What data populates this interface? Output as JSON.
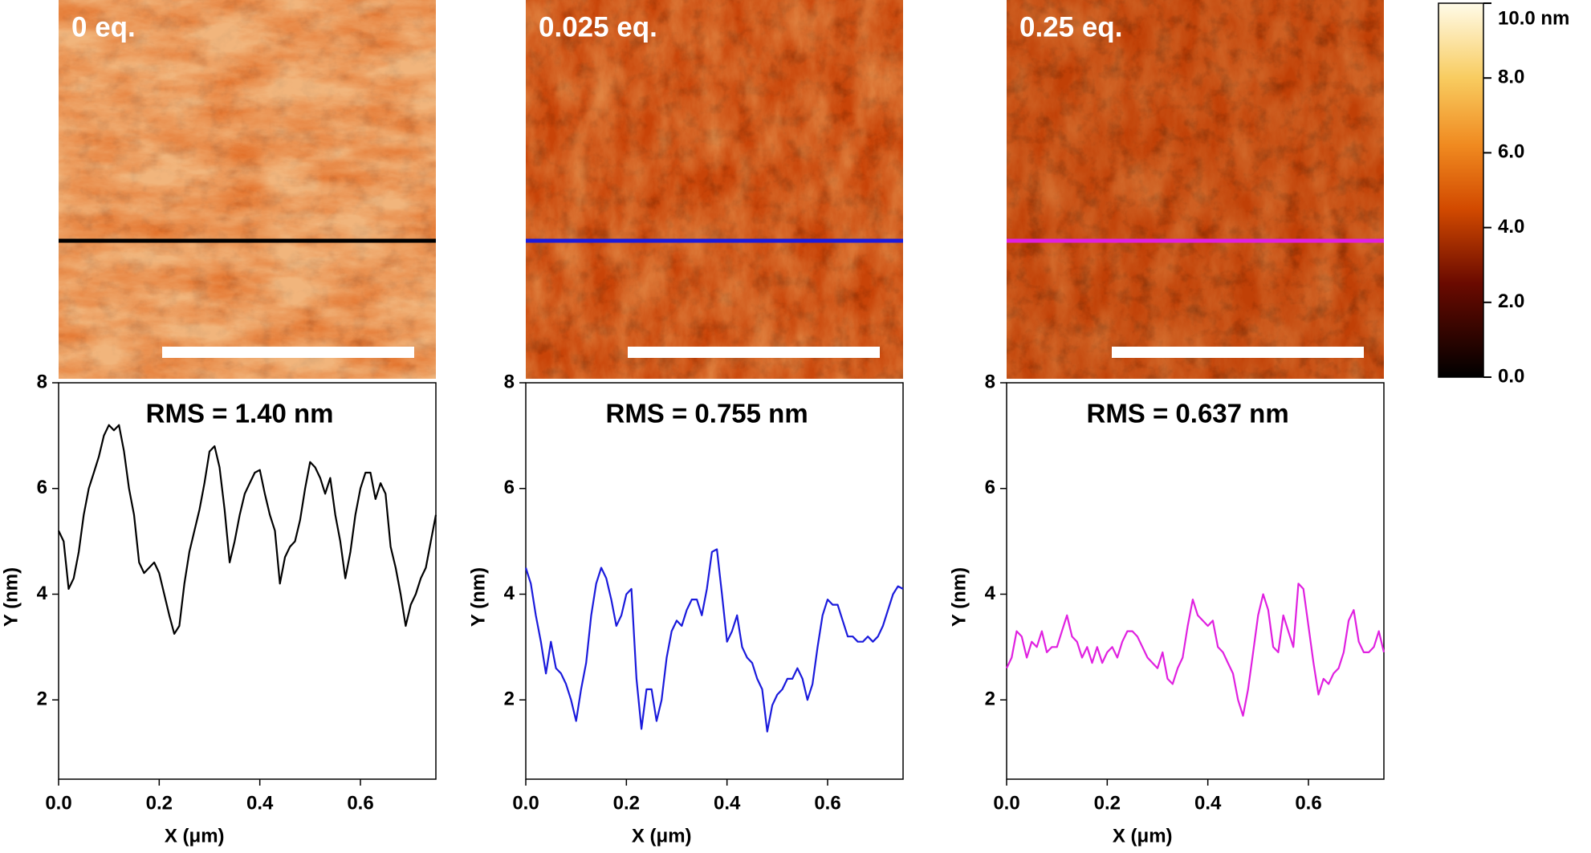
{
  "colorbar": {
    "lim": [
      0,
      10
    ],
    "ticks": [
      {
        "value": 10,
        "label": "10.0 nm"
      },
      {
        "value": 8,
        "label": "8.0"
      },
      {
        "value": 6,
        "label": "6.0"
      },
      {
        "value": 4,
        "label": "4.0"
      },
      {
        "value": 2,
        "label": "2.0"
      },
      {
        "value": 0,
        "label": "0.0"
      }
    ]
  },
  "chart_data": [
    {
      "type": "line",
      "image_label": "0 eq.",
      "annotation": "RMS = 1.40 nm",
      "xlabel": "X (μm)",
      "ylabel": "Y (nm)",
      "xlim": [
        0,
        0.75
      ],
      "ylim": [
        0.5,
        8
      ],
      "xticks": [
        {
          "value": 0,
          "label": "0.0"
        },
        {
          "value": 0.2,
          "label": "0.2"
        },
        {
          "value": 0.4,
          "label": "0.4"
        },
        {
          "value": 0.6,
          "label": "0.6"
        }
      ],
      "yticks": [
        2,
        4,
        6,
        8
      ],
      "x": [
        0,
        0.01,
        0.02,
        0.03,
        0.04,
        0.05,
        0.06,
        0.07,
        0.08,
        0.09,
        0.1,
        0.11,
        0.12,
        0.13,
        0.14,
        0.15,
        0.16,
        0.17,
        0.18,
        0.19,
        0.2,
        0.21,
        0.22,
        0.23,
        0.24,
        0.25,
        0.26,
        0.27,
        0.28,
        0.29,
        0.3,
        0.31,
        0.32,
        0.33,
        0.34,
        0.35,
        0.36,
        0.37,
        0.38,
        0.39,
        0.4,
        0.41,
        0.42,
        0.43,
        0.44,
        0.45,
        0.46,
        0.47,
        0.48,
        0.49,
        0.5,
        0.51,
        0.52,
        0.53,
        0.54,
        0.55,
        0.56,
        0.57,
        0.58,
        0.59,
        0.6,
        0.61,
        0.62,
        0.63,
        0.64,
        0.65,
        0.66,
        0.67,
        0.68,
        0.69,
        0.7,
        0.71,
        0.72,
        0.73,
        0.74,
        0.75
      ],
      "series": [
        {
          "color": "#000000",
          "values": [
            5.2,
            5.0,
            4.1,
            4.3,
            4.8,
            5.5,
            6.0,
            6.3,
            6.6,
            7.0,
            7.2,
            7.1,
            7.2,
            6.7,
            6.0,
            5.5,
            4.6,
            4.4,
            4.5,
            4.6,
            4.4,
            4.0,
            3.6,
            3.25,
            3.4,
            4.2,
            4.8,
            5.2,
            5.6,
            6.1,
            6.7,
            6.8,
            6.4,
            5.6,
            4.6,
            5.0,
            5.5,
            5.9,
            6.1,
            6.3,
            6.35,
            5.9,
            5.5,
            5.2,
            4.2,
            4.7,
            4.9,
            5.0,
            5.4,
            6.0,
            6.5,
            6.4,
            6.2,
            5.9,
            6.2,
            5.5,
            5.0,
            4.3,
            4.8,
            5.5,
            6.0,
            6.3,
            6.3,
            5.8,
            6.1,
            5.9,
            4.9,
            4.5,
            4.0,
            3.4,
            3.8,
            4.0,
            4.3,
            4.5,
            5.0,
            5.5
          ]
        }
      ]
    },
    {
      "type": "line",
      "image_label": "0.025 eq.",
      "annotation": "RMS = 0.755 nm",
      "xlabel": "X (μm)",
      "ylabel": "Y (nm)",
      "xlim": [
        0,
        0.75
      ],
      "ylim": [
        0.5,
        8
      ],
      "xticks": [
        {
          "value": 0,
          "label": "0.0"
        },
        {
          "value": 0.2,
          "label": "0.2"
        },
        {
          "value": 0.4,
          "label": "0.4"
        },
        {
          "value": 0.6,
          "label": "0.6"
        }
      ],
      "yticks": [
        2,
        4,
        6,
        8
      ],
      "x": [
        0,
        0.01,
        0.02,
        0.03,
        0.04,
        0.05,
        0.06,
        0.07,
        0.08,
        0.09,
        0.1,
        0.11,
        0.12,
        0.13,
        0.14,
        0.15,
        0.16,
        0.17,
        0.18,
        0.19,
        0.2,
        0.21,
        0.22,
        0.23,
        0.24,
        0.25,
        0.26,
        0.27,
        0.28,
        0.29,
        0.3,
        0.31,
        0.32,
        0.33,
        0.34,
        0.35,
        0.36,
        0.37,
        0.38,
        0.39,
        0.4,
        0.41,
        0.42,
        0.43,
        0.44,
        0.45,
        0.46,
        0.47,
        0.48,
        0.49,
        0.5,
        0.51,
        0.52,
        0.53,
        0.54,
        0.55,
        0.56,
        0.57,
        0.58,
        0.59,
        0.6,
        0.61,
        0.62,
        0.63,
        0.64,
        0.65,
        0.66,
        0.67,
        0.68,
        0.69,
        0.7,
        0.71,
        0.72,
        0.73,
        0.74,
        0.75
      ],
      "series": [
        {
          "color": "#1a1adc",
          "values": [
            4.5,
            4.2,
            3.6,
            3.1,
            2.5,
            3.1,
            2.6,
            2.5,
            2.3,
            2.0,
            1.6,
            2.2,
            2.7,
            3.6,
            4.2,
            4.5,
            4.3,
            3.9,
            3.4,
            3.6,
            4.0,
            4.1,
            2.4,
            1.45,
            2.2,
            2.2,
            1.6,
            2.0,
            2.8,
            3.3,
            3.5,
            3.4,
            3.7,
            3.9,
            3.9,
            3.6,
            4.1,
            4.8,
            4.85,
            4.0,
            3.1,
            3.3,
            3.6,
            3.0,
            2.8,
            2.7,
            2.4,
            2.2,
            1.4,
            1.9,
            2.1,
            2.2,
            2.4,
            2.4,
            2.6,
            2.4,
            2.0,
            2.3,
            3.0,
            3.6,
            3.9,
            3.8,
            3.8,
            3.5,
            3.2,
            3.2,
            3.1,
            3.1,
            3.2,
            3.1,
            3.2,
            3.4,
            3.7,
            4.0,
            4.15,
            4.1
          ]
        }
      ]
    },
    {
      "type": "line",
      "image_label": "0.25 eq.",
      "annotation": "RMS = 0.637 nm",
      "xlabel": "X (μm)",
      "ylabel": "Y (nm)",
      "xlim": [
        0,
        0.75
      ],
      "ylim": [
        0.5,
        8
      ],
      "xticks": [
        {
          "value": 0,
          "label": "0.0"
        },
        {
          "value": 0.2,
          "label": "0.2"
        },
        {
          "value": 0.4,
          "label": "0.4"
        },
        {
          "value": 0.6,
          "label": "0.6"
        }
      ],
      "yticks": [
        2,
        4,
        6,
        8
      ],
      "x": [
        0,
        0.01,
        0.02,
        0.03,
        0.04,
        0.05,
        0.06,
        0.07,
        0.08,
        0.09,
        0.1,
        0.11,
        0.12,
        0.13,
        0.14,
        0.15,
        0.16,
        0.17,
        0.18,
        0.19,
        0.2,
        0.21,
        0.22,
        0.23,
        0.24,
        0.25,
        0.26,
        0.27,
        0.28,
        0.29,
        0.3,
        0.31,
        0.32,
        0.33,
        0.34,
        0.35,
        0.36,
        0.37,
        0.38,
        0.39,
        0.4,
        0.41,
        0.42,
        0.43,
        0.44,
        0.45,
        0.46,
        0.47,
        0.48,
        0.49,
        0.5,
        0.51,
        0.52,
        0.53,
        0.54,
        0.55,
        0.56,
        0.57,
        0.58,
        0.59,
        0.6,
        0.61,
        0.62,
        0.63,
        0.64,
        0.65,
        0.66,
        0.67,
        0.68,
        0.69,
        0.7,
        0.71,
        0.72,
        0.73,
        0.74,
        0.75
      ],
      "series": [
        {
          "color": "#e020e0",
          "values": [
            2.6,
            2.8,
            3.3,
            3.2,
            2.8,
            3.1,
            3.0,
            3.3,
            2.9,
            3.0,
            3.0,
            3.3,
            3.6,
            3.2,
            3.1,
            2.8,
            3.0,
            2.7,
            3.0,
            2.7,
            2.9,
            3.0,
            2.8,
            3.1,
            3.3,
            3.3,
            3.2,
            3.0,
            2.8,
            2.7,
            2.6,
            2.9,
            2.4,
            2.3,
            2.6,
            2.8,
            3.4,
            3.9,
            3.6,
            3.5,
            3.4,
            3.5,
            3.0,
            2.9,
            2.7,
            2.5,
            2.0,
            1.7,
            2.2,
            2.9,
            3.6,
            4.0,
            3.7,
            3.0,
            2.9,
            3.6,
            3.3,
            3.0,
            4.2,
            4.1,
            3.4,
            2.7,
            2.1,
            2.4,
            2.3,
            2.5,
            2.6,
            2.9,
            3.5,
            3.7,
            3.1,
            2.9,
            2.9,
            3.0,
            3.3,
            2.9
          ]
        }
      ]
    }
  ]
}
